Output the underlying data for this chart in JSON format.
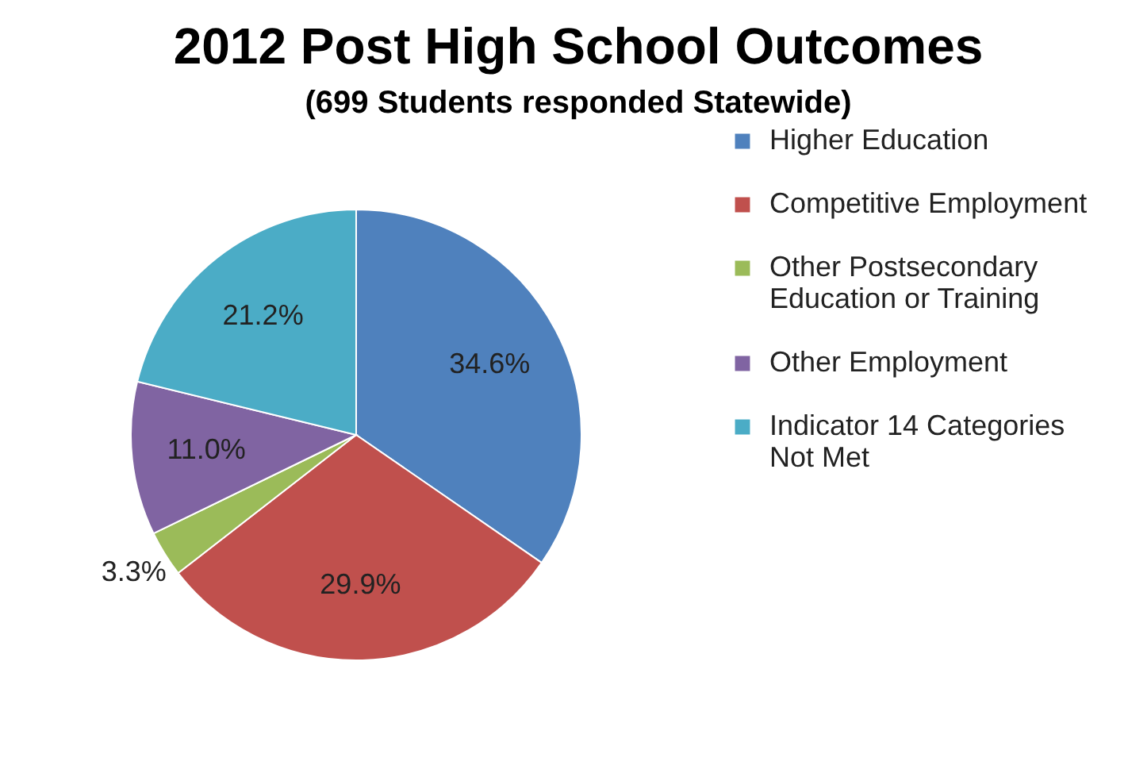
{
  "chart_data": {
    "type": "pie",
    "title": "2012 Post High School Outcomes",
    "subtitle": "(699 Students responded Statewide)",
    "categories": [
      "Higher Education",
      "Competitive Employment",
      "Other Postsecondary Education or Training",
      "Other Employment",
      "Indicator 14 Categories Not Met"
    ],
    "values": [
      34.6,
      29.9,
      3.3,
      11.0,
      21.2
    ],
    "colors": [
      "#4f81bd",
      "#c0504d",
      "#9bbb59",
      "#8064a2",
      "#4bacc6"
    ],
    "value_labels": [
      "34.6%",
      "29.9%",
      "3.3%",
      "11.0%",
      "21.2%"
    ],
    "legend": "right"
  }
}
